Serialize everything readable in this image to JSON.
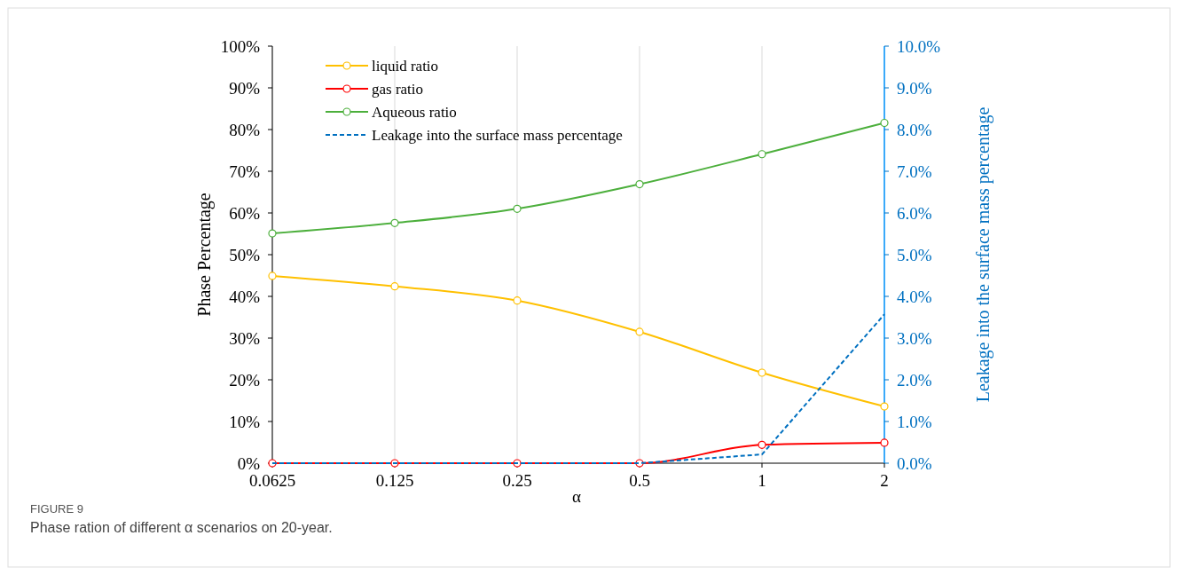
{
  "chart_data": {
    "type": "line",
    "xlabel": "α",
    "ylabel": "Phase Percentage",
    "y2label": "Leakage into the surface mass percentage",
    "categories": [
      "0.0625",
      "0.125",
      "0.25",
      "0.5",
      "1",
      "2"
    ],
    "series": [
      {
        "name": "liquid ratio",
        "color": "#ffc000",
        "marker": "circle",
        "line_style": "solid",
        "values": [
          44.9,
          42.4,
          39.0,
          31.5,
          21.7,
          13.6
        ]
      },
      {
        "name": "gas ratio",
        "color": "#ff0000",
        "marker": "circle",
        "line_style": "solid",
        "values": [
          0,
          0,
          0,
          0,
          4.4,
          4.9
        ]
      },
      {
        "name": "Aqueous ratio",
        "color": "#4caf3c",
        "marker": "circle",
        "line_style": "solid",
        "values": [
          55.1,
          57.6,
          61.0,
          66.9,
          74.1,
          81.6
        ]
      },
      {
        "name": "Leakage into the surface mass percentage",
        "color": "#0070c0",
        "marker": "none",
        "line_style": "dashed",
        "axis": "y2",
        "values": [
          0,
          0,
          0,
          0,
          0.21,
          3.57
        ]
      }
    ],
    "ylim": [
      0,
      100
    ],
    "yticks": [
      {
        "value": 0,
        "label": "0%"
      },
      {
        "value": 10,
        "label": "10%"
      },
      {
        "value": 20,
        "label": "20%"
      },
      {
        "value": 30,
        "label": "30%"
      },
      {
        "value": 40,
        "label": "40%"
      },
      {
        "value": 50,
        "label": "50%"
      },
      {
        "value": 60,
        "label": "60%"
      },
      {
        "value": 70,
        "label": "70%"
      },
      {
        "value": 80,
        "label": "80%"
      },
      {
        "value": 90,
        "label": "90%"
      },
      {
        "value": 100,
        "label": "100%"
      }
    ],
    "y2lim": [
      0,
      10
    ],
    "y2ticks": [
      {
        "value": 0,
        "label": "0.0%"
      },
      {
        "value": 1,
        "label": "1.0%"
      },
      {
        "value": 2,
        "label": "2.0%"
      },
      {
        "value": 3,
        "label": "3.0%"
      },
      {
        "value": 4,
        "label": "4.0%"
      },
      {
        "value": 5,
        "label": "5.0%"
      },
      {
        "value": 6,
        "label": "6.0%"
      },
      {
        "value": 7,
        "label": "7.0%"
      },
      {
        "value": 8,
        "label": "8.0%"
      },
      {
        "value": 9,
        "label": "9.0%"
      },
      {
        "value": 10,
        "label": "10.0%"
      }
    ],
    "grid": "x",
    "legend": "top left",
    "annotations": [
      "FIGURE 9",
      "Phase ration of different α scenarios on 20-year."
    ]
  }
}
